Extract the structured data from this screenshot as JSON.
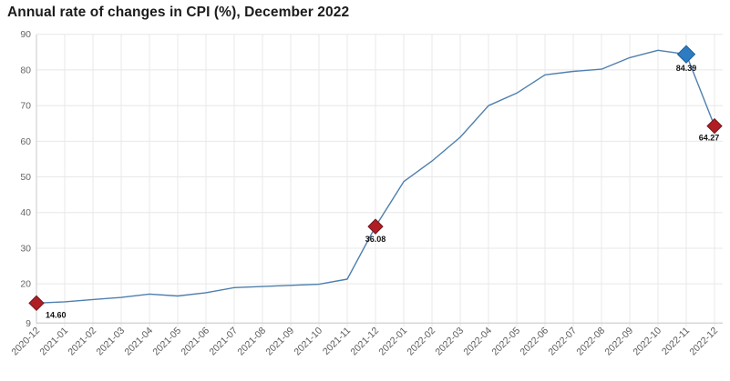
{
  "title": "Annual rate of changes in CPI (%), December 2022",
  "chart_data": {
    "type": "line",
    "title": "Annual rate of changes in CPI (%), December 2022",
    "xlabel": "",
    "ylabel": "",
    "x": [
      "2020-12",
      "2021-01",
      "2021-02",
      "2021-03",
      "2021-04",
      "2021-05",
      "2021-06",
      "2021-07",
      "2021-08",
      "2021-09",
      "2021-10",
      "2021-11",
      "2021-12",
      "2022-01",
      "2022-02",
      "2022-03",
      "2022-04",
      "2022-05",
      "2022-06",
      "2022-07",
      "2022-08",
      "2022-09",
      "2022-10",
      "2022-11",
      "2022-12"
    ],
    "values": [
      14.6,
      14.97,
      15.61,
      16.19,
      17.14,
      16.59,
      17.53,
      18.95,
      19.25,
      19.58,
      19.89,
      21.31,
      36.08,
      48.69,
      54.44,
      61.14,
      69.97,
      73.5,
      78.62,
      79.6,
      80.21,
      83.45,
      85.51,
      84.39,
      64.27
    ],
    "yticks": [
      9,
      20,
      30,
      40,
      50,
      60,
      70,
      80,
      90
    ],
    "ylim": [
      9,
      90
    ],
    "grid": true,
    "legend": "none",
    "line_color": "#4e7fae",
    "grid_color": "#e8e8e8",
    "axis_color": "#c9c9c9",
    "marked_points": [
      {
        "x": "2020-12",
        "value": 14.6,
        "label": "14.60",
        "fill": "#b01e24",
        "stroke": "#6e1a1e",
        "align": "below-right"
      },
      {
        "x": "2021-12",
        "value": 36.08,
        "label": "36.08",
        "fill": "#b01e24",
        "stroke": "#6e1a1e",
        "align": "below"
      },
      {
        "x": "2022-11",
        "value": 84.39,
        "label": "84.39",
        "fill": "#2d7cc1",
        "stroke": "#1c5c94",
        "align": "below"
      },
      {
        "x": "2022-12",
        "value": 64.27,
        "label": "64.27",
        "fill": "#b01e24",
        "stroke": "#6e1a1e",
        "align": "below-left"
      }
    ]
  }
}
